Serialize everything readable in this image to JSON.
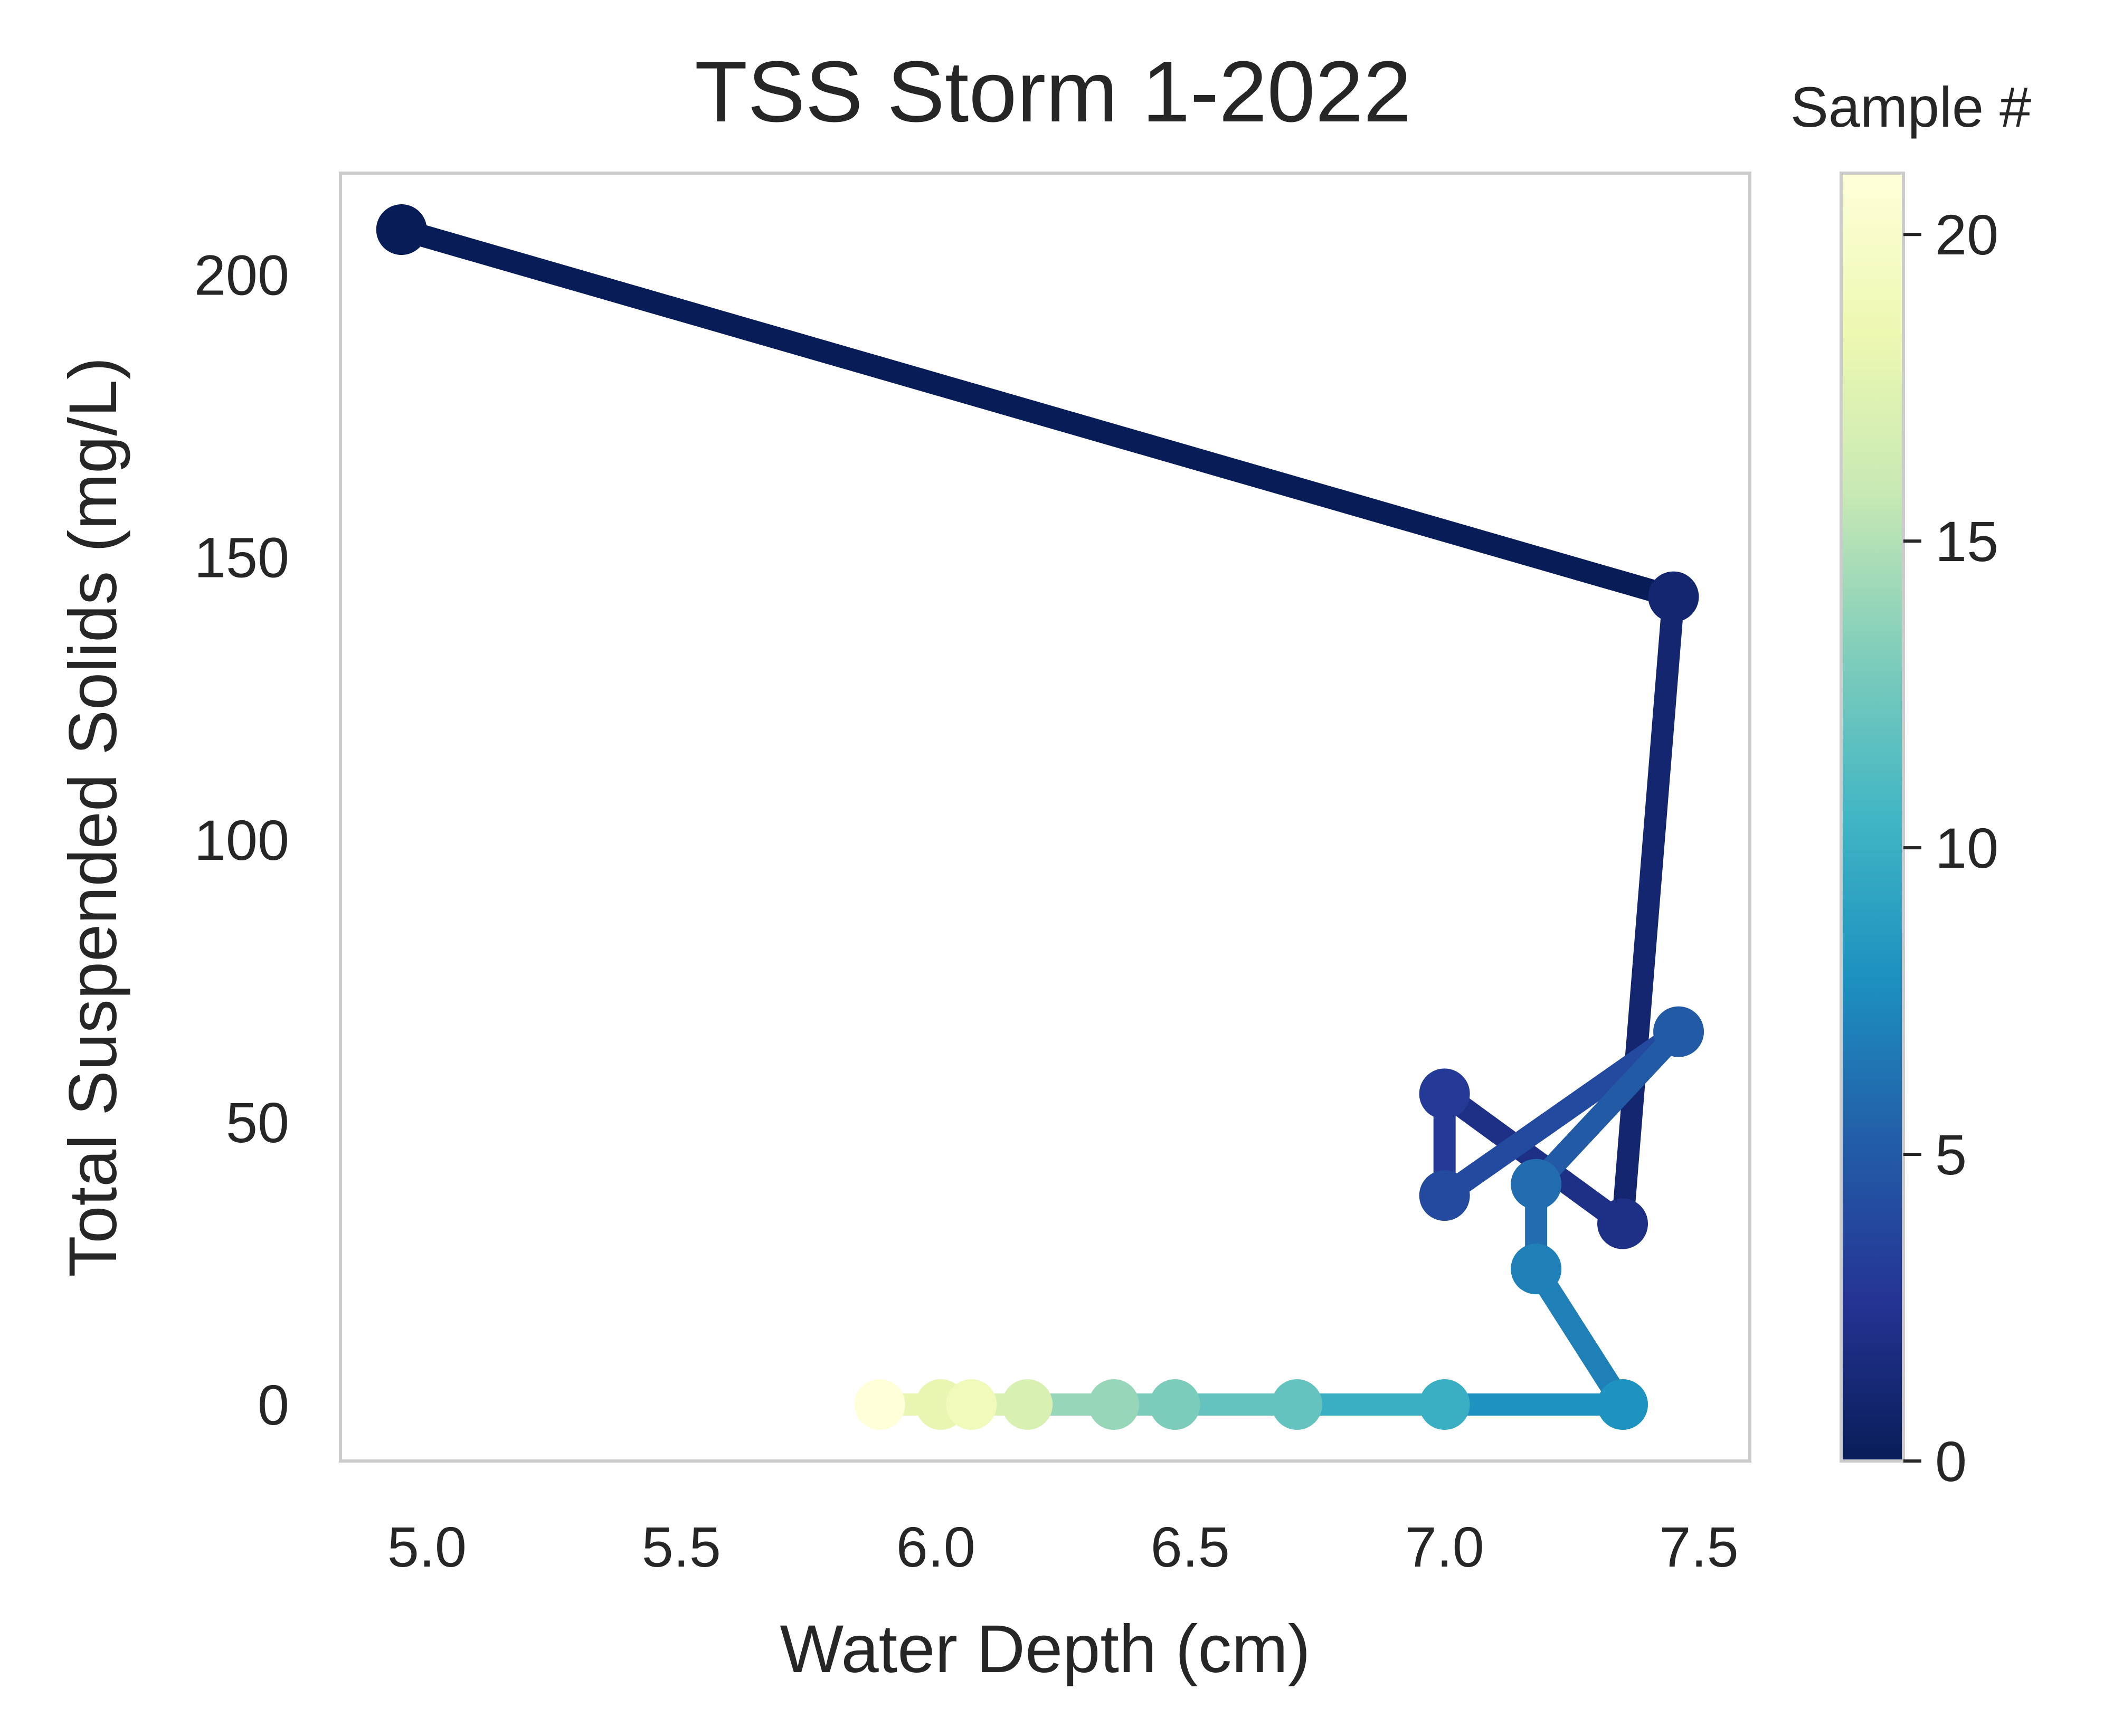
{
  "chart_data": {
    "type": "line",
    "title": "TSS Storm 1-2022",
    "xlabel": "Water Depth (cm)",
    "ylabel": "Total Suspended Solids (mg/L)",
    "xlim": [
      4.83,
      7.6
    ],
    "ylim": [
      -10,
      218
    ],
    "xticks": [
      5.0,
      5.5,
      6.0,
      6.5,
      7.0,
      7.5
    ],
    "xtick_labels": [
      "5.0",
      "5.5",
      "6.0",
      "6.5",
      "7.0",
      "7.5"
    ],
    "yticks": [
      0,
      50,
      100,
      150,
      200
    ],
    "ytick_labels": [
      "0",
      "50",
      "100",
      "150",
      "200"
    ],
    "grid": false,
    "colormap": "YlGnBu_r",
    "colorbar": {
      "label": "Sample #",
      "range": [
        0,
        21
      ],
      "ticks": [
        0,
        5,
        10,
        15,
        20
      ],
      "tick_labels": [
        "0",
        "5",
        "10",
        "15",
        "20"
      ],
      "stops": [
        "#081d58",
        "#253494",
        "#225ea8",
        "#1d91c0",
        "#41b6c4",
        "#7fcdbb",
        "#c7e9b4",
        "#edf8b1",
        "#ffffd9"
      ]
    },
    "series": [
      {
        "x": [
          4.95,
          7.45,
          7.35,
          7.0,
          7.0,
          7.46,
          7.18,
          7.18,
          7.35,
          7.0,
          6.71,
          6.47,
          6.35,
          6.18,
          6.07,
          6.01,
          5.89
        ],
        "y": [
          208,
          143,
          32,
          55,
          37,
          66,
          39,
          24,
          0,
          0,
          0,
          0,
          0,
          0,
          0,
          0,
          0
        ],
        "sample": [
          0,
          1,
          2,
          3,
          4,
          5,
          6,
          7,
          8,
          10,
          12,
          13,
          14,
          17,
          19,
          18,
          21
        ]
      }
    ]
  }
}
